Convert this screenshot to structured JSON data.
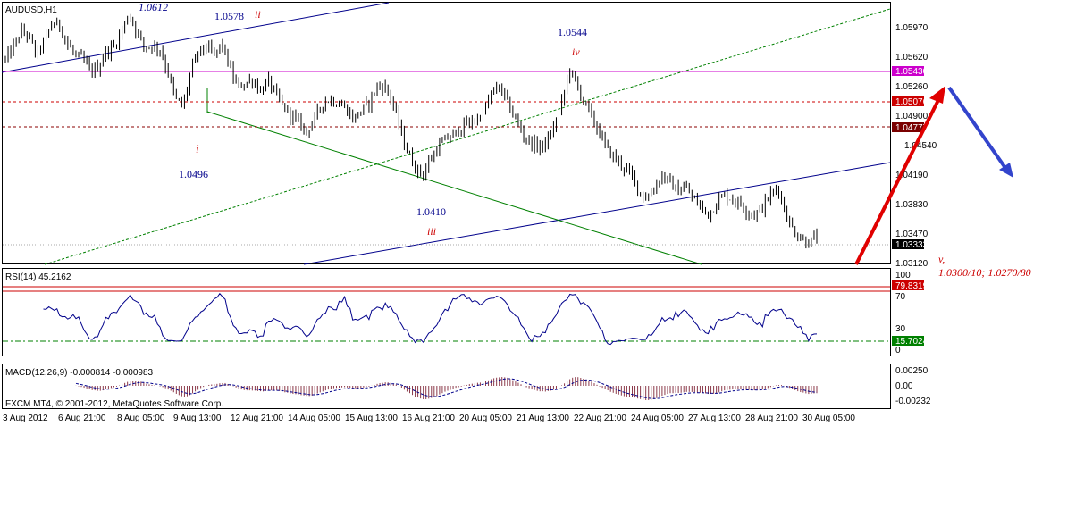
{
  "symbol_label": "AUDUSD,H1",
  "rsi_label": "RSI(14) 45.2162",
  "macd_label": "MACD(12,26,9) -0.000814 -0.000983",
  "copyright": "FXCM MT4, © 2001-2012, MetaQuotes Software Corp.",
  "colors": {
    "candle": "#000000",
    "trend_blue": "#00008b",
    "trend_green": "#008000",
    "magenta": "#cc00cc",
    "red": "#cc0000",
    "dark_red": "#8b0000",
    "rsi_line": "#00008b",
    "macd_hist": "#8b3a4a",
    "arrow_up": "#e00000",
    "arrow_down": "#3344cc"
  },
  "chart_data": [
    {
      "type": "candlestick",
      "title": "AUDUSD,H1",
      "ylim": [
        1.03,
        1.0625
      ],
      "y_ticks": [
        "1.05970",
        "1.05620",
        "1.05260",
        "1.04900",
        "1.04540",
        "1.04190",
        "1.03830",
        "1.03470",
        "1.03120"
      ],
      "x_ticks": [
        "3 Aug 2012",
        "6 Aug 21:00",
        "8 Aug 05:00",
        "9 Aug 13:00",
        "12 Aug 21:00",
        "14 Aug 05:00",
        "15 Aug 13:00",
        "16 Aug 21:00",
        "20 Aug 05:00",
        "21 Aug 13:00",
        "22 Aug 21:00",
        "24 Aug 05:00",
        "27 Aug 13:00",
        "28 Aug 21:00",
        "30 Aug 05:00"
      ],
      "price_path": [
        1.0555,
        1.057,
        1.059,
        1.0585,
        1.056,
        1.0578,
        1.06,
        1.0598,
        1.0575,
        1.056,
        1.0555,
        1.054,
        1.0545,
        1.0565,
        1.057,
        1.059,
        1.0612,
        1.059,
        1.057,
        1.0572,
        1.0568,
        1.054,
        1.0505,
        1.0496,
        1.054,
        1.0565,
        1.057,
        1.056,
        1.0575,
        1.0545,
        1.052,
        1.0525,
        1.053,
        1.0515,
        1.0528,
        1.051,
        1.0495,
        1.0485,
        1.0475,
        1.0465,
        1.048,
        1.05,
        1.0505,
        1.05,
        1.0495,
        1.048,
        1.049,
        1.05,
        1.052,
        1.0522,
        1.0505,
        1.047,
        1.044,
        1.042,
        1.041,
        1.043,
        1.0445,
        1.0455,
        1.046,
        1.047,
        1.0475,
        1.048,
        1.049,
        1.0515,
        1.052,
        1.05,
        1.048,
        1.046,
        1.045,
        1.0445,
        1.045,
        1.047,
        1.05,
        1.0544,
        1.052,
        1.05,
        1.048,
        1.046,
        1.044,
        1.043,
        1.042,
        1.041,
        1.039,
        1.038,
        1.0395,
        1.041,
        1.04,
        1.039,
        1.0395,
        1.038,
        1.037,
        1.036,
        1.0375,
        1.0385,
        1.038,
        1.0375,
        1.0365,
        1.036,
        1.037,
        1.0385,
        1.0395,
        1.036,
        1.034,
        1.033,
        1.0325,
        1.0333
      ],
      "horizontal_levels": [
        {
          "price": 1.0543,
          "label": "1.05430",
          "style": "solid",
          "color": "#cc00cc"
        },
        {
          "price": 1.0508,
          "label": "1.05076",
          "style": "dashed",
          "color": "#cc0000"
        },
        {
          "price": 1.0477,
          "label": "1.04777",
          "style": "dashed",
          "color": "#8b0000"
        },
        {
          "price": 1.0333,
          "label": "1.03333",
          "style": "dotted",
          "color": "#999999"
        }
      ],
      "annotations": [
        {
          "text": "1.0612",
          "color": "#00008b",
          "style": "italic"
        },
        {
          "text": "1.0578",
          "color": "#00008b"
        },
        {
          "text": "ii",
          "color": "#cc0000",
          "style": "italic"
        },
        {
          "text": "i",
          "color": "#cc0000",
          "style": "italic"
        },
        {
          "text": "1.0496",
          "color": "#00008b"
        },
        {
          "text": "1.0410",
          "color": "#00008b"
        },
        {
          "text": "iii",
          "color": "#cc0000",
          "style": "italic"
        },
        {
          "text": "1.0544",
          "color": "#00008b"
        },
        {
          "text": "iv",
          "color": "#cc0000",
          "style": "italic"
        },
        {
          "text": "v,",
          "color": "#cc0000",
          "style": "italic"
        },
        {
          "text": "1.0300/10; 1.0270/80",
          "color": "#cc0000",
          "style": "italic"
        }
      ]
    },
    {
      "type": "line",
      "title": "RSI(14) 45.2162",
      "ylim": [
        0,
        100
      ],
      "y_ticks": [
        "100",
        "70",
        "30",
        "0"
      ],
      "levels": [
        {
          "value": 79.8319,
          "label": "79.8319"
        },
        {
          "value": 15.7024,
          "label": "15.7024"
        }
      ],
      "current": 45.2162
    },
    {
      "type": "bar",
      "title": "MACD(12,26,9) -0.000814 -0.000983",
      "y_ticks": [
        "0.00250",
        "0.00",
        "-0.00232"
      ],
      "main": -0.000814,
      "signal": -0.000983
    }
  ]
}
